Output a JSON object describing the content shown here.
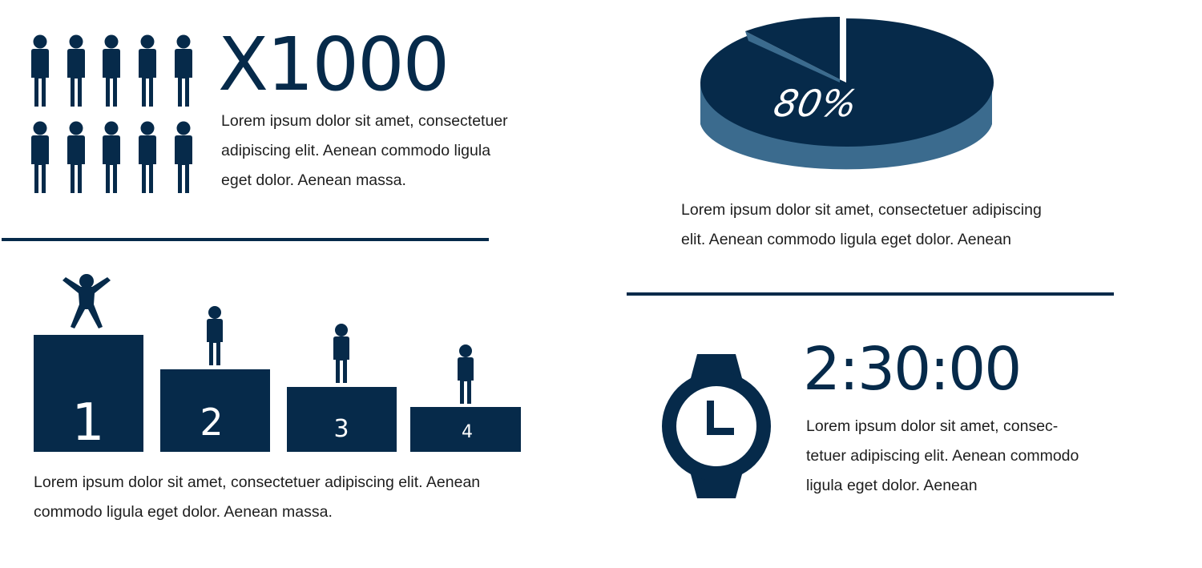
{
  "colors": {
    "navy": "#062a4a",
    "steel": "#3b6b8e",
    "white": "#ffffff"
  },
  "people": {
    "icon": "person-icon",
    "count": 10,
    "headline": "X1000",
    "lines": [
      "Lorem ipsum dolor sit amet, consectetuer",
      "adipiscing elit. Aenean commodo ligula",
      "eget dolor. Aenean massa."
    ]
  },
  "pie": {
    "icon": "pie-3d-icon",
    "label": "80%",
    "lines": [
      "Lorem ipsum dolor sit amet, consectetuer adipiscing",
      "elit. Aenean commodo ligula eget dolor. Aenean"
    ]
  },
  "chart_data": {
    "type": "pie",
    "values": [
      80,
      20
    ],
    "data_labels": [
      "80%"
    ]
  },
  "podium": {
    "winner_icon": "celebrating-person-icon",
    "person_icon": "person-icon",
    "places": [
      "1",
      "2",
      "3",
      "4"
    ],
    "lines": [
      "Lorem ipsum dolor sit amet, consectetuer adipiscing elit. Aenean",
      "commodo ligula eget dolor. Aenean massa."
    ]
  },
  "watch": {
    "icon": "wristwatch-icon",
    "time": "2:30:00",
    "lines": [
      "Lorem ipsum dolor sit amet, consec-",
      "tetuer adipiscing elit. Aenean commodo",
      "ligula eget dolor. Aenean"
    ]
  }
}
